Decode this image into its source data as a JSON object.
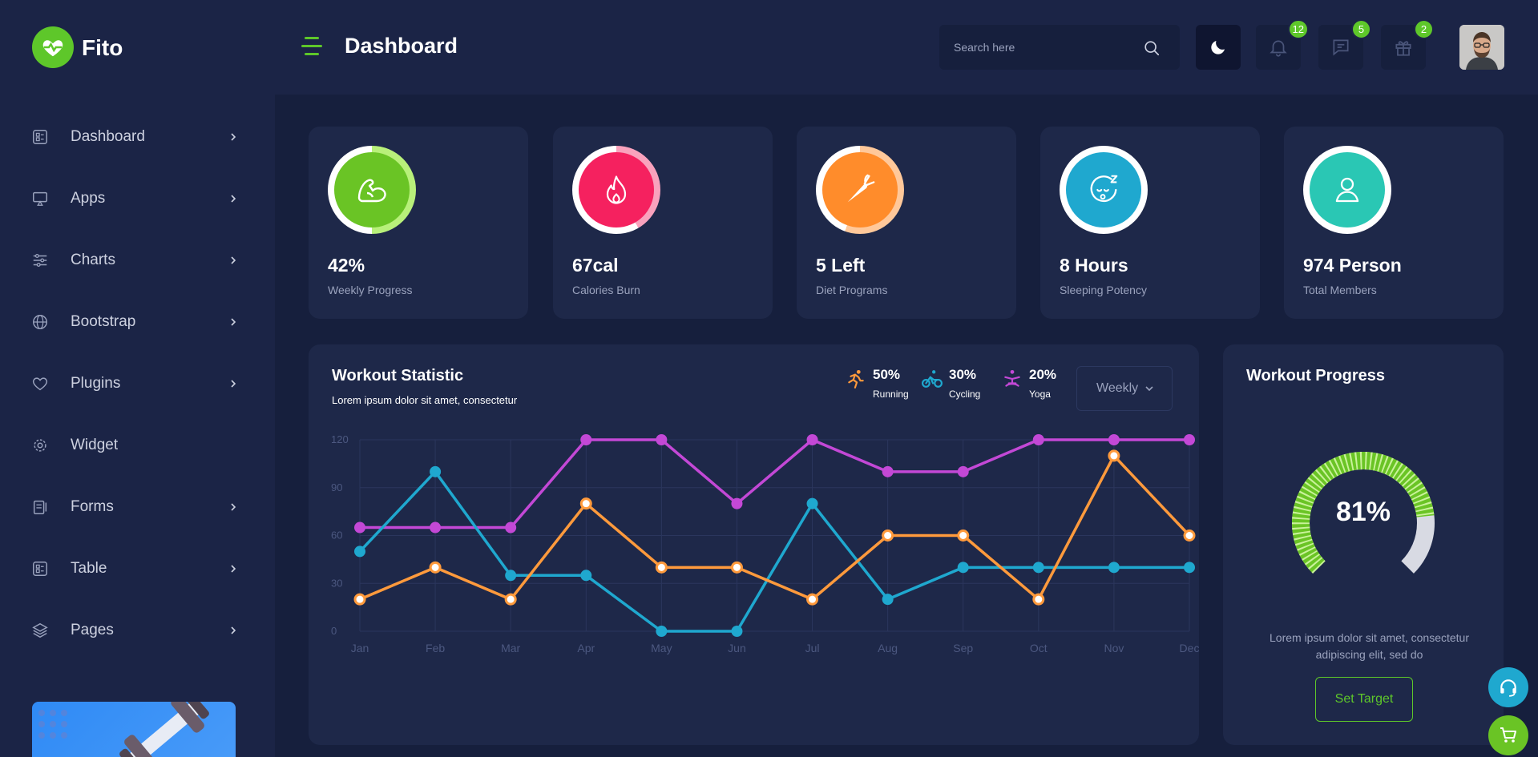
{
  "header": {
    "brand": "Fito",
    "title": "Dashboard",
    "search_placeholder": "Search here",
    "notifications": {
      "bell": "12",
      "chat": "5",
      "gift": "2"
    }
  },
  "sidebar": {
    "items": [
      {
        "label": "Dashboard",
        "icon": "dashboard-icon",
        "chevron": true
      },
      {
        "label": "Apps",
        "icon": "monitor-icon",
        "chevron": true
      },
      {
        "label": "Charts",
        "icon": "sliders-icon",
        "chevron": true
      },
      {
        "label": "Bootstrap",
        "icon": "globe-icon",
        "chevron": true
      },
      {
        "label": "Plugins",
        "icon": "heart-icon",
        "chevron": true
      },
      {
        "label": "Widget",
        "icon": "gear-icon",
        "chevron": false
      },
      {
        "label": "Forms",
        "icon": "clipboard-icon",
        "chevron": true
      },
      {
        "label": "Table",
        "icon": "table-icon",
        "chevron": true
      },
      {
        "label": "Pages",
        "icon": "layers-icon",
        "chevron": true
      }
    ]
  },
  "stats": [
    {
      "value": "42%",
      "label": "Weekly Progress",
      "color": "#6ac425",
      "ring": "#b8f07a",
      "icon": "muscle-icon"
    },
    {
      "value": "67cal",
      "label": "Calories Burn",
      "color": "#f5215f",
      "ring": "#f9a2bd",
      "icon": "flame-icon"
    },
    {
      "value": "5 Left",
      "label": "Diet Programs",
      "color": "#ff8c2b",
      "ring": "#ffc89a",
      "icon": "carrot-icon"
    },
    {
      "value": "8 Hours",
      "label": "Sleeping Potency",
      "color": "#1fa8cf",
      "ring": "#ffffff",
      "icon": "sleep-icon"
    },
    {
      "value": "974 Person",
      "label": "Total Members",
      "color": "#2ac7b4",
      "ring": "#ffffff",
      "icon": "user-icon"
    }
  ],
  "workout_statistic": {
    "title": "Workout Statistic",
    "subtitle": "Lorem ipsum dolor sit amet, consectetur",
    "legend": [
      {
        "pct": "50%",
        "name": "Running",
        "color": "#ff9a3c",
        "icon": "running-icon"
      },
      {
        "pct": "30%",
        "name": "Cycling",
        "color": "#1fa8cf",
        "icon": "cycling-icon"
      },
      {
        "pct": "20%",
        "name": "Yoga",
        "color": "#c348d6",
        "icon": "yoga-icon"
      }
    ],
    "period": "Weekly"
  },
  "chart_data": {
    "type": "line",
    "categories": [
      "Jan",
      "Feb",
      "Mar",
      "Apr",
      "May",
      "Jun",
      "Jul",
      "Aug",
      "Sep",
      "Oct",
      "Nov",
      "Dec"
    ],
    "yticks": [
      "0",
      "30",
      "60",
      "90",
      "120"
    ],
    "ylim": [
      0,
      120
    ],
    "grid": true,
    "series": [
      {
        "name": "Yoga",
        "color": "#c348d6",
        "values": [
          65,
          65,
          65,
          120,
          120,
          80,
          120,
          100,
          100,
          120,
          120,
          120
        ]
      },
      {
        "name": "Cycling",
        "color": "#1fa8cf",
        "values": [
          50,
          100,
          35,
          35,
          0,
          0,
          80,
          20,
          40,
          40,
          40,
          40
        ]
      },
      {
        "name": "Running",
        "color": "#ff9a3c",
        "values": [
          20,
          40,
          20,
          80,
          40,
          40,
          20,
          60,
          60,
          20,
          110,
          60
        ]
      }
    ]
  },
  "workout_progress": {
    "title": "Workout Progress",
    "percent_label": "81%",
    "progress": 0.81,
    "text": "Lorem ipsum dolor sit amet, consectetur adipiscing elit, sed do",
    "button": "Set Target",
    "color": "#6ac425"
  }
}
